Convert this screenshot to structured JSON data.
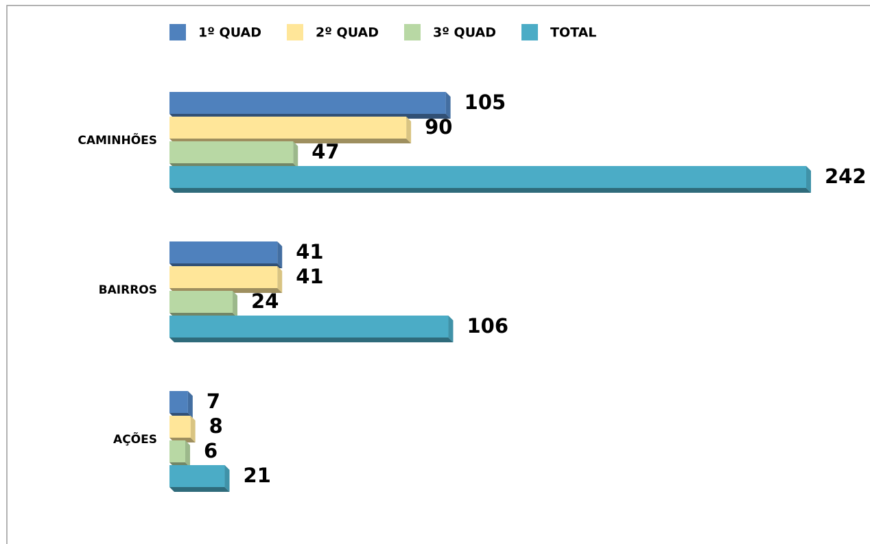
{
  "chart_data": {
    "type": "bar3d_horizontal",
    "categories": [
      "CAMINHÕES",
      "BAIRROS",
      "AÇÕES"
    ],
    "series": [
      {
        "name": "1º QUAD",
        "color": "#4f81bd",
        "values": [
          105,
          41,
          7
        ]
      },
      {
        "name": "2º QUAD",
        "color": "#ffe699",
        "values": [
          90,
          41,
          8
        ]
      },
      {
        "name": "3º QUAD",
        "color": "#b8d8a4",
        "values": [
          47,
          24,
          6
        ]
      },
      {
        "name": "TOTAL",
        "color": "#4bacc6",
        "values": [
          242,
          106,
          21
        ]
      }
    ],
    "legend": "top"
  }
}
